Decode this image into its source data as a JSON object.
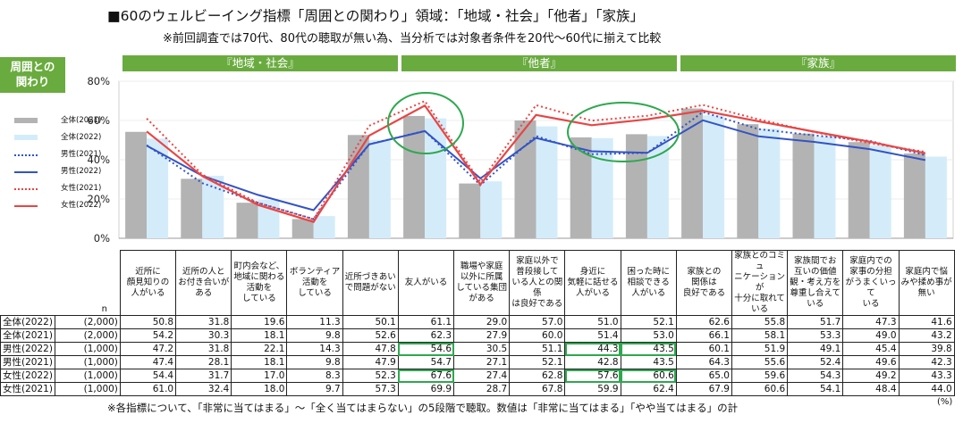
{
  "title": "■60のウェルビーイング指標「周囲との関わり」領域：「地域・社会」「他者」「家族」",
  "note_top": "※前回調査では70代、80代の聴取が無い為、当分析では対象者条件を20代～60代に揃えて比較",
  "section_label": "周囲との関わり",
  "group_headers": [
    "『地域・社会』",
    "『他者』",
    "『家族』"
  ],
  "n_label": "n",
  "unit_label": "(%)",
  "note_bottom": "※各指標について、「非常に当てはまる」～「全く当てはまらない」の5段階で聴取。数値は「非常に当てはまる」「やや当てはまる」の計",
  "colors": {
    "green": "#6aab3f",
    "bar_all_2021": "#b3b3b3",
    "bar_all_2022": "#d4ecfa",
    "male": "#3353c4",
    "female": "#e84545",
    "highlight": "#2ea84f"
  },
  "chart_data": {
    "type": "bar+line",
    "ylim": [
      0,
      80
    ],
    "yticks": [
      "0%",
      "20%",
      "40%",
      "60%",
      "80%"
    ],
    "categories": [
      "近所に顔見知りの人がいる",
      "近所の人とお付き合いがある",
      "町内会など、地域に関わる活動をしている",
      "ボランティア活動をしている",
      "近所づきあいで問題がない",
      "友人がいる",
      "職場や家庭以外に所属している集団がある",
      "家庭以外で普段接している人との関係は良好である",
      "身近に気軽に話せる人がいる",
      "困った時に相談できる人がいる",
      "家族との関係は良好である",
      "家族とのコミュニケーションが十分に取れている",
      "家族間でお互いの価値観・考え方を尊重し合えている",
      "家庭内での家事の分担がうまくいっている",
      "家庭内で悩みや揉め事が無い"
    ],
    "category_lines": [
      [
        "近所に",
        "顔見知りの",
        "人がいる"
      ],
      [
        "近所の人と",
        "お付き合いが",
        "ある"
      ],
      [
        "町内会など、",
        "地域に関わる",
        "活動を",
        "している"
      ],
      [
        "ボランティア",
        "活動を",
        "している"
      ],
      [
        "近所づきあい",
        "で問題がない"
      ],
      [
        "友人がいる"
      ],
      [
        "職場や家庭",
        "以外に所属",
        "している集団",
        "がある"
      ],
      [
        "家庭以外で",
        "普段接して",
        "いる人との関係",
        "は良好である"
      ],
      [
        "身近に",
        "気軽に話せる",
        "人がいる"
      ],
      [
        "困った時に",
        "相談できる",
        "人がいる"
      ],
      [
        "家族との",
        "関係は",
        "良好である"
      ],
      [
        "家族とのコミュ",
        "ニケーションが",
        "十分に取れて",
        "いる"
      ],
      [
        "家族間でお",
        "互いの価値",
        "観・考え方を",
        "尊重し合えて",
        "いる"
      ],
      [
        "家庭内での",
        "家事の分担",
        "がうまくいって",
        "いる"
      ],
      [
        "家庭内で悩",
        "みや揉め事が",
        "無い"
      ]
    ],
    "series": [
      {
        "name": "全体(2022)",
        "legend": "全体(2022)",
        "n": "(2,000)",
        "kind": "bar",
        "values": [
          50.8,
          31.8,
          19.6,
          11.3,
          50.1,
          61.1,
          29.0,
          57.0,
          51.0,
          52.1,
          62.6,
          55.8,
          51.7,
          47.3,
          41.6
        ]
      },
      {
        "name": "全体(2021)",
        "legend": "全体(2021)",
        "n": "(2,000)",
        "kind": "bar",
        "values": [
          54.2,
          30.3,
          18.1,
          9.8,
          52.6,
          62.3,
          27.9,
          60.0,
          51.4,
          53.0,
          66.1,
          58.1,
          53.3,
          49.0,
          43.2
        ]
      },
      {
        "name": "男性(2022)",
        "legend": "男性(2022)",
        "n": "(1,000)",
        "kind": "line",
        "values": [
          47.2,
          31.8,
          22.1,
          14.3,
          47.8,
          54.6,
          30.5,
          51.1,
          44.3,
          43.5,
          60.1,
          51.9,
          49.1,
          45.4,
          39.8
        ]
      },
      {
        "name": "男性(2021)",
        "legend": "男性(2021)",
        "n": "(1,000)",
        "kind": "line-dotted",
        "values": [
          47.4,
          28.1,
          18.1,
          9.8,
          47.9,
          54.7,
          27.1,
          52.1,
          42.8,
          43.5,
          64.3,
          55.6,
          52.4,
          49.6,
          42.3
        ]
      },
      {
        "name": "女性(2022)",
        "legend": "女性(2022)",
        "n": "(1,000)",
        "kind": "line",
        "values": [
          54.4,
          31.7,
          17.0,
          8.3,
          52.3,
          67.6,
          27.4,
          62.8,
          57.6,
          60.6,
          65.0,
          59.6,
          54.3,
          49.2,
          43.3
        ]
      },
      {
        "name": "女性(2021)",
        "legend": "女性(2021)",
        "n": "(1,000)",
        "kind": "line-dotted",
        "values": [
          61.0,
          32.4,
          18.0,
          9.7,
          57.3,
          69.9,
          28.7,
          67.8,
          59.9,
          62.4,
          67.9,
          60.6,
          54.1,
          48.4,
          44.0
        ]
      }
    ],
    "table_row_order": [
      0,
      1,
      2,
      3,
      4,
      5
    ],
    "legend_order": [
      1,
      0,
      3,
      2,
      5,
      4
    ],
    "highlighted_cells": [
      [
        2,
        5
      ],
      [
        4,
        5
      ],
      [
        2,
        8
      ],
      [
        2,
        9
      ],
      [
        4,
        8
      ],
      [
        4,
        9
      ]
    ],
    "highlight_ellipses_on": [
      "友人がいる",
      "身近に気軽に話せる人がいる / 困った時に相談できる人がいる"
    ]
  }
}
